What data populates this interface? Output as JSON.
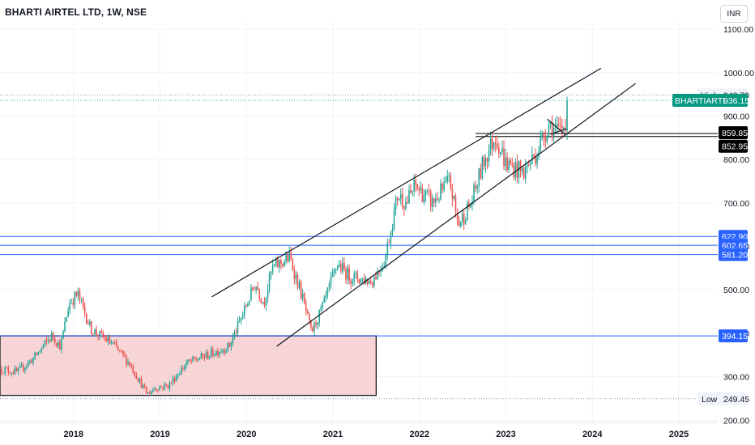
{
  "header": {
    "title": "BHARTI AIRTEL LTD, 1W, NSE",
    "currency_button": "INR"
  },
  "colors": {
    "up": "#26a69a",
    "down": "#ef5350",
    "level_line": "#2962ff",
    "label_blue": "#2962ff",
    "label_black": "#000000",
    "label_green": "#089981",
    "zone_fill": "#f7d4d6",
    "zone_border": "#131722"
  },
  "chart_data": {
    "type": "candlestick",
    "symbol": "BHARTIARTL",
    "timeframe": "1W",
    "ylim": [
      195,
      1115
    ],
    "y_ticks": [
      200,
      300,
      400,
      500,
      600,
      700,
      800,
      900,
      1000,
      1100
    ],
    "y_tick_labels": [
      "200.00",
      "300.00",
      "400.00",
      "500.00",
      "600.00",
      "700.00",
      "800.00",
      "900.00",
      "1000.00",
      "1100.00"
    ],
    "xlim": [
      2017.15,
      2025.45
    ],
    "x_ticks": [
      2018,
      2019,
      2020,
      2021,
      2022,
      2023,
      2024,
      2025
    ],
    "x_tick_labels": [
      "2018",
      "2019",
      "2020",
      "2021",
      "2022",
      "2023",
      "2024",
      "2025"
    ],
    "price_path": [
      [
        2017.15,
        318
      ],
      [
        2017.35,
        310
      ],
      [
        2017.55,
        345
      ],
      [
        2017.75,
        395
      ],
      [
        2017.85,
        370
      ],
      [
        2017.95,
        470
      ],
      [
        2018.05,
        490
      ],
      [
        2018.2,
        410
      ],
      [
        2018.45,
        375
      ],
      [
        2018.65,
        330
      ],
      [
        2018.85,
        260
      ],
      [
        2018.95,
        275
      ],
      [
        2019.1,
        280
      ],
      [
        2019.3,
        330
      ],
      [
        2019.55,
        350
      ],
      [
        2019.8,
        370
      ],
      [
        2019.95,
        440
      ],
      [
        2020.1,
        515
      ],
      [
        2020.2,
        470
      ],
      [
        2020.3,
        550
      ],
      [
        2020.5,
        575
      ],
      [
        2020.65,
        480
      ],
      [
        2020.75,
        400
      ],
      [
        2020.9,
        470
      ],
      [
        2021.05,
        560
      ],
      [
        2021.2,
        530
      ],
      [
        2021.45,
        520
      ],
      [
        2021.6,
        570
      ],
      [
        2021.75,
        720
      ],
      [
        2021.85,
        700
      ],
      [
        2021.95,
        740
      ],
      [
        2022.15,
        700
      ],
      [
        2022.35,
        750
      ],
      [
        2022.45,
        650
      ],
      [
        2022.6,
        700
      ],
      [
        2022.75,
        800
      ],
      [
        2022.88,
        855
      ],
      [
        2023.0,
        790
      ],
      [
        2023.2,
        770
      ],
      [
        2023.35,
        815
      ],
      [
        2023.5,
        885
      ],
      [
        2023.6,
        860
      ],
      [
        2023.68,
        880
      ],
      [
        2023.72,
        936.15
      ]
    ],
    "series": [
      {
        "name": "High",
        "value": 948.7
      },
      {
        "name": "BHARTIARTL",
        "value": 936.15
      },
      {
        "name": "Low",
        "value": 249.45
      }
    ],
    "horizontal_levels": [
      {
        "value": 859.85,
        "label": "859.85",
        "style": "black",
        "x_start": 2022.65
      },
      {
        "value": 852.95,
        "label": "852.95",
        "style": "black",
        "x_start": 2022.65
      },
      {
        "value": 622.9,
        "label": "622.90",
        "style": "blue",
        "x_start": 2017.15
      },
      {
        "value": 602.65,
        "label": "602.65",
        "style": "blue",
        "x_start": 2017.15
      },
      {
        "value": 581.2,
        "label": "581.20",
        "style": "blue",
        "x_start": 2017.15
      },
      {
        "value": 394.15,
        "label": "394.15",
        "style": "blue",
        "x_start": 2017.15
      }
    ],
    "trendlines": [
      {
        "p1": [
          2019.6,
          484
        ],
        "p2": [
          2024.1,
          1010
        ]
      },
      {
        "p1": [
          2020.35,
          370
        ],
        "p2": [
          2024.5,
          975
        ]
      },
      {
        "p1": [
          2023.48,
          893
        ],
        "p2": [
          2023.68,
          858
        ]
      },
      {
        "p1": [
          2023.52,
          858
        ],
        "p2": [
          2023.7,
          871
        ]
      }
    ],
    "zone": {
      "x1": 2017.15,
      "x2": 2021.5,
      "y1": 257,
      "y2": 394.15
    },
    "high_label": "High",
    "high_value": "948.70",
    "low_label": "Low",
    "low_value": "249.45",
    "last_symbol": "BHARTIARTL",
    "last_value": "936.15"
  }
}
